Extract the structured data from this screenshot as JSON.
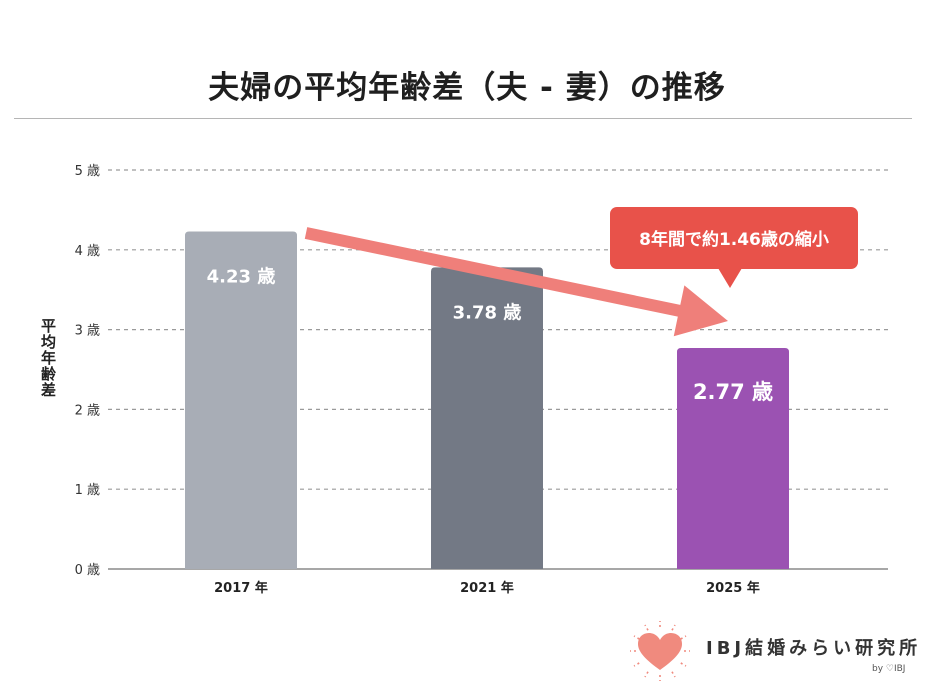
{
  "chart_data": {
    "type": "bar",
    "title": "夫婦の平均年齢差（夫 - 妻）の推移",
    "ylabel": "平均年齢差",
    "ylim": [
      0,
      5
    ],
    "yticks": [
      "0 歳",
      "1 歳",
      "2 歳",
      "3 歳",
      "4 歳",
      "5 歳"
    ],
    "grid": true,
    "categories": [
      "2017 年",
      "2021 年",
      "2025 年"
    ],
    "values": [
      4.23,
      3.78,
      2.77
    ],
    "data_labels": [
      "4.23 歳",
      "3.78 歳",
      "2.77 歳"
    ],
    "bar_colors": [
      "#a8adb6",
      "#737985",
      "#9b52b2"
    ],
    "annotation": {
      "text": "8年間で約1.46歳の縮小",
      "color": "#e8524a",
      "arrow_color": "#ef7f7a"
    }
  },
  "logo": {
    "text": "IBJ結婚みらい研究所",
    "sub": "by ♡IBJ",
    "heart_color": "#f08a7e"
  }
}
